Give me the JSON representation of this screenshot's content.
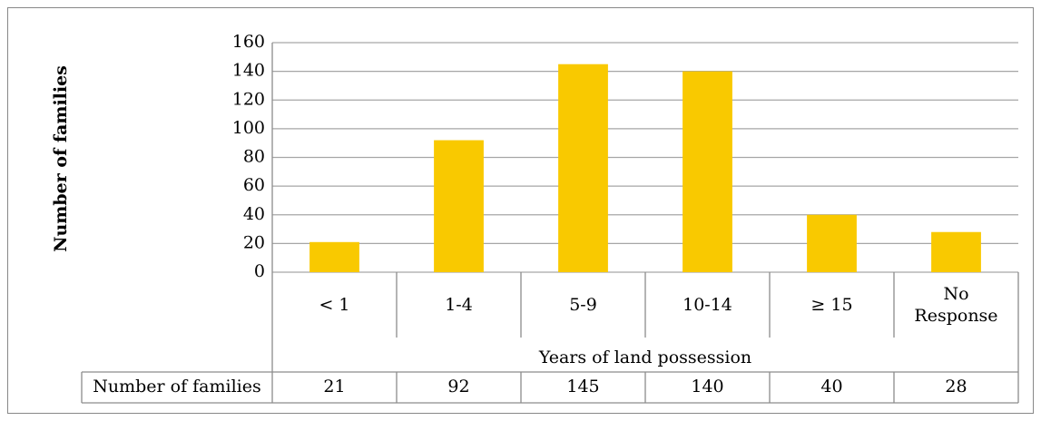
{
  "chart_data": {
    "type": "bar",
    "ylabel": "Number of families",
    "xlabel": "Years of land possession",
    "table_row_label": "Number of families",
    "categories": [
      "< 1",
      "1-4",
      "5-9",
      "10-14",
      "≥ 15",
      "No Response"
    ],
    "values": [
      21,
      92,
      145,
      140,
      40,
      28
    ],
    "color": "#f9c900",
    "ylim": [
      0,
      160
    ],
    "yticks": [
      0,
      20,
      40,
      60,
      80,
      100,
      120,
      140,
      160
    ],
    "grid": true
  }
}
